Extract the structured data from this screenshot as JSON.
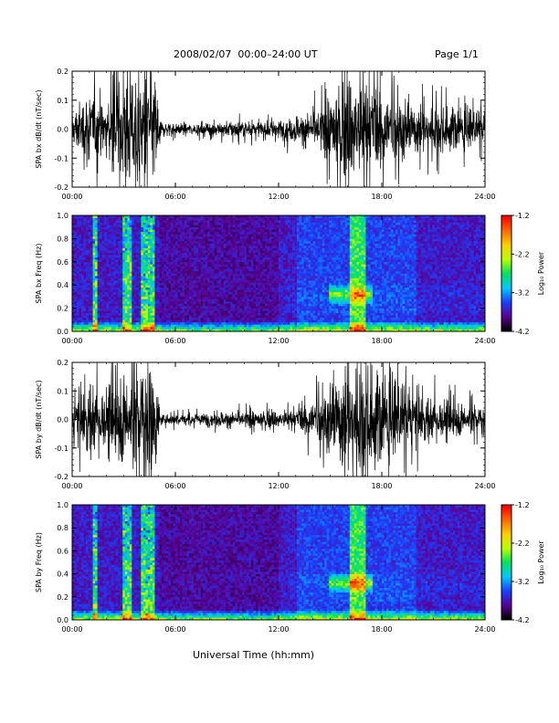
{
  "header": {
    "title": "2008/02/07  00:00–24:00 UT",
    "page": "Page 1/1"
  },
  "xaxis_title": "Universal Time (hh:mm)",
  "colorbar": {
    "label": "Log₁₀ Power",
    "ticks": [
      "-1.2",
      "-2.2",
      "-3.2",
      "-4.2"
    ],
    "range": [
      -4.2,
      -1.2
    ],
    "colors": [
      "#000000",
      "#5a0094",
      "#1a40ff",
      "#00c8ff",
      "#00e060",
      "#b8ff00",
      "#ffd000",
      "#ff6a00",
      "#ff0000"
    ]
  },
  "chart_data": [
    {
      "type": "line",
      "id": "bx-timeseries",
      "ylabel": "SPA bx dB/dt (nT/sec)",
      "x_ticks": [
        "00:00",
        "06:00",
        "12:00",
        "18:00",
        "24:00"
      ],
      "y_ticks": [
        "-0.2",
        "-0.1",
        "0.0",
        "0.1",
        "0.2"
      ],
      "xlim": [
        0,
        24
      ],
      "ylim": [
        -0.2,
        0.2
      ],
      "x_unit": "hours UT",
      "amplitude_envelope": [
        {
          "x": 0.0,
          "amp": 0.06
        },
        {
          "x": 1.0,
          "amp": 0.15
        },
        {
          "x": 2.0,
          "amp": 0.1
        },
        {
          "x": 3.0,
          "amp": 0.2
        },
        {
          "x": 4.0,
          "amp": 0.22
        },
        {
          "x": 4.9,
          "amp": 0.2
        },
        {
          "x": 5.1,
          "amp": 0.03
        },
        {
          "x": 7.0,
          "amp": 0.02
        },
        {
          "x": 9.0,
          "amp": 0.03
        },
        {
          "x": 11.0,
          "amp": 0.03
        },
        {
          "x": 13.0,
          "amp": 0.05
        },
        {
          "x": 14.5,
          "amp": 0.08
        },
        {
          "x": 16.0,
          "amp": 0.2
        },
        {
          "x": 17.0,
          "amp": 0.22
        },
        {
          "x": 18.0,
          "amp": 0.15
        },
        {
          "x": 20.0,
          "amp": 0.09
        },
        {
          "x": 22.0,
          "amp": 0.08
        },
        {
          "x": 24.0,
          "amp": 0.06
        }
      ]
    },
    {
      "type": "heatmap",
      "id": "bx-spectrogram",
      "ylabel": "SPA bx Freq (Hz)",
      "x_ticks": [
        "00:00",
        "06:00",
        "12:00",
        "18:00",
        "24:00"
      ],
      "y_ticks": [
        "0.0",
        "0.2",
        "0.4",
        "0.6",
        "0.8",
        "1.0"
      ],
      "xlim": [
        0,
        24
      ],
      "ylim": [
        0,
        1.0
      ],
      "value_range": [
        -4.2,
        -1.2
      ],
      "features": [
        {
          "x": [
            1.2,
            1.5
          ],
          "note": "vertical burst"
        },
        {
          "x": [
            3.0,
            3.4
          ],
          "note": "vertical burst"
        },
        {
          "x": [
            4.0,
            4.8
          ],
          "note": "vertical burst"
        },
        {
          "x": [
            15.0,
            17.5
          ],
          "freq": 0.32,
          "note": "Pc1 band"
        },
        {
          "x": [
            16.2,
            17.0
          ],
          "note": "broadband activity up to 1.0 Hz"
        }
      ]
    },
    {
      "type": "line",
      "id": "by-timeseries",
      "ylabel": "SPA by dB/dt (nT/sec)",
      "x_ticks": [
        "00:00",
        "06:00",
        "12:00",
        "18:00",
        "24:00"
      ],
      "y_ticks": [
        "-0.2",
        "-0.1",
        "0.0",
        "0.1",
        "0.2"
      ],
      "xlim": [
        0,
        24
      ],
      "ylim": [
        -0.2,
        0.2
      ],
      "x_unit": "hours UT",
      "amplitude_envelope": [
        {
          "x": 0.0,
          "amp": 0.06
        },
        {
          "x": 1.0,
          "amp": 0.15
        },
        {
          "x": 2.0,
          "amp": 0.12
        },
        {
          "x": 3.0,
          "amp": 0.18
        },
        {
          "x": 4.0,
          "amp": 0.22
        },
        {
          "x": 4.9,
          "amp": 0.2
        },
        {
          "x": 5.1,
          "amp": 0.02
        },
        {
          "x": 7.0,
          "amp": 0.02
        },
        {
          "x": 9.0,
          "amp": 0.03
        },
        {
          "x": 11.0,
          "amp": 0.03
        },
        {
          "x": 13.0,
          "amp": 0.04
        },
        {
          "x": 14.5,
          "amp": 0.1
        },
        {
          "x": 16.0,
          "amp": 0.2
        },
        {
          "x": 17.0,
          "amp": 0.22
        },
        {
          "x": 18.0,
          "amp": 0.16
        },
        {
          "x": 20.0,
          "amp": 0.1
        },
        {
          "x": 22.0,
          "amp": 0.07
        },
        {
          "x": 24.0,
          "amp": 0.05
        }
      ]
    },
    {
      "type": "heatmap",
      "id": "by-spectrogram",
      "ylabel": "SPA by Freq (Hz)",
      "x_ticks": [
        "00:00",
        "06:00",
        "12:00",
        "18:00",
        "24:00"
      ],
      "y_ticks": [
        "0.0",
        "0.2",
        "0.4",
        "0.6",
        "0.8",
        "1.0"
      ],
      "xlim": [
        0,
        24
      ],
      "ylim": [
        0,
        1.0
      ],
      "value_range": [
        -4.2,
        -1.2
      ],
      "features": [
        {
          "x": [
            1.2,
            1.5
          ],
          "note": "vertical burst"
        },
        {
          "x": [
            3.0,
            3.4
          ],
          "note": "vertical burst"
        },
        {
          "x": [
            4.0,
            4.8
          ],
          "note": "vertical burst"
        },
        {
          "x": [
            15.0,
            17.5
          ],
          "freq": 0.32,
          "note": "Pc1 band"
        },
        {
          "x": [
            16.2,
            17.0
          ],
          "note": "broadband activity up to 1.0 Hz"
        }
      ]
    }
  ]
}
